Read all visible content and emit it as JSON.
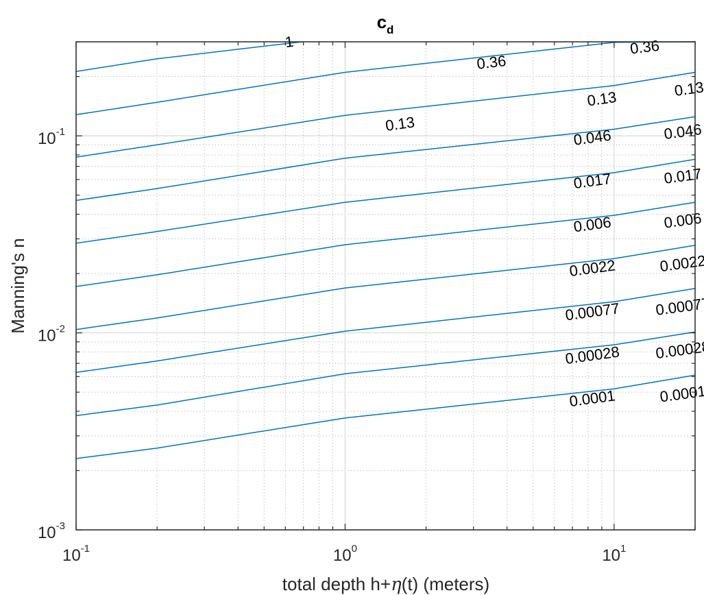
{
  "chart_data": {
    "type": "contour",
    "title": "c",
    "title_subscript": "d",
    "xlabel_prefix": "total depth h+",
    "xlabel_symbol": "η",
    "xlabel_suffix": "(t) (meters)",
    "ylabel": "Manning's n",
    "xscale": "log",
    "yscale": "log",
    "xlim": [
      0.1,
      20
    ],
    "ylim": [
      0.001,
      0.3
    ],
    "grid": "on (major and minor)",
    "x_ticks": [
      {
        "value": 0.1,
        "base": "10",
        "exp": "-1"
      },
      {
        "value": 1,
        "base": "10",
        "exp": "0"
      },
      {
        "value": 10,
        "base": "10",
        "exp": "1"
      }
    ],
    "y_ticks": [
      {
        "value": 0.001,
        "base": "10",
        "exp": "-3"
      },
      {
        "value": 0.01,
        "base": "10",
        "exp": "-2"
      },
      {
        "value": 0.1,
        "base": "10",
        "exp": "-1"
      }
    ],
    "levels": [
      {
        "label": "1",
        "n_at_x": [
          [
            0.1,
            0.212
          ],
          [
            0.2,
            0.246
          ],
          [
            0.5,
            0.285
          ],
          [
            0.69,
            0.3
          ]
        ],
        "label_positions": [
          [
            0.62,
            0.3
          ]
        ]
      },
      {
        "label": "0.36",
        "n_at_x": [
          [
            0.1,
            0.128
          ],
          [
            0.2,
            0.148
          ],
          [
            1,
            0.21
          ],
          [
            10,
            0.298
          ],
          [
            20,
            0.3
          ]
        ],
        "label_positions": [
          [
            3.5,
            0.236
          ],
          [
            13,
            0.282
          ]
        ]
      },
      {
        "label": "0.13",
        "n_at_x": [
          [
            0.1,
            0.078
          ],
          [
            0.2,
            0.09
          ],
          [
            1,
            0.127
          ],
          [
            10,
            0.18
          ],
          [
            20,
            0.21
          ]
        ],
        "label_positions": [
          [
            1.6,
            0.115
          ],
          [
            9,
            0.154
          ],
          [
            19,
            0.173
          ]
        ]
      },
      {
        "label": "0.046",
        "n_at_x": [
          [
            0.1,
            0.047
          ],
          [
            0.2,
            0.054
          ],
          [
            1,
            0.077
          ],
          [
            10,
            0.108
          ],
          [
            20,
            0.125
          ]
        ],
        "label_positions": [
          [
            8.3,
            0.098
          ],
          [
            18,
            0.105
          ]
        ]
      },
      {
        "label": "0.017",
        "n_at_x": [
          [
            0.1,
            0.0285
          ],
          [
            0.2,
            0.0327
          ],
          [
            1,
            0.046
          ],
          [
            10,
            0.065
          ],
          [
            20,
            0.076
          ]
        ],
        "label_positions": [
          [
            8.3,
            0.059
          ],
          [
            18,
            0.0625
          ]
        ]
      },
      {
        "label": "0.006",
        "n_at_x": [
          [
            0.1,
            0.0172
          ],
          [
            0.2,
            0.0197
          ],
          [
            1,
            0.028
          ],
          [
            10,
            0.0395
          ],
          [
            20,
            0.046
          ]
        ],
        "label_positions": [
          [
            8.3,
            0.0355
          ],
          [
            18,
            0.0372
          ]
        ]
      },
      {
        "label": "0.0022",
        "n_at_x": [
          [
            0.1,
            0.0104
          ],
          [
            0.2,
            0.0119
          ],
          [
            1,
            0.0169
          ],
          [
            10,
            0.0238
          ],
          [
            20,
            0.0278
          ]
        ],
        "label_positions": [
          [
            8.3,
            0.0213
          ],
          [
            18,
            0.0225
          ]
        ]
      },
      {
        "label": "0.00077",
        "n_at_x": [
          [
            0.1,
            0.0063
          ],
          [
            0.2,
            0.0072
          ],
          [
            1,
            0.0102
          ],
          [
            10,
            0.0144
          ],
          [
            20,
            0.0168
          ]
        ],
        "label_positions": [
          [
            8.3,
            0.0128
          ],
          [
            18,
            0.0136
          ]
        ]
      },
      {
        "label": "0.00028",
        "n_at_x": [
          [
            0.1,
            0.0038
          ],
          [
            0.2,
            0.0043
          ],
          [
            1,
            0.0062
          ],
          [
            10,
            0.0087
          ],
          [
            20,
            0.0101
          ]
        ],
        "label_positions": [
          [
            8.3,
            0.0077
          ],
          [
            18,
            0.0082
          ]
        ]
      },
      {
        "label": "0.0001",
        "n_at_x": [
          [
            0.1,
            0.0023
          ],
          [
            0.2,
            0.0026
          ],
          [
            1,
            0.0037
          ],
          [
            10,
            0.0052
          ],
          [
            20,
            0.0061
          ]
        ],
        "label_positions": [
          [
            8.3,
            0.00465
          ],
          [
            18,
            0.0049
          ]
        ]
      }
    ]
  }
}
